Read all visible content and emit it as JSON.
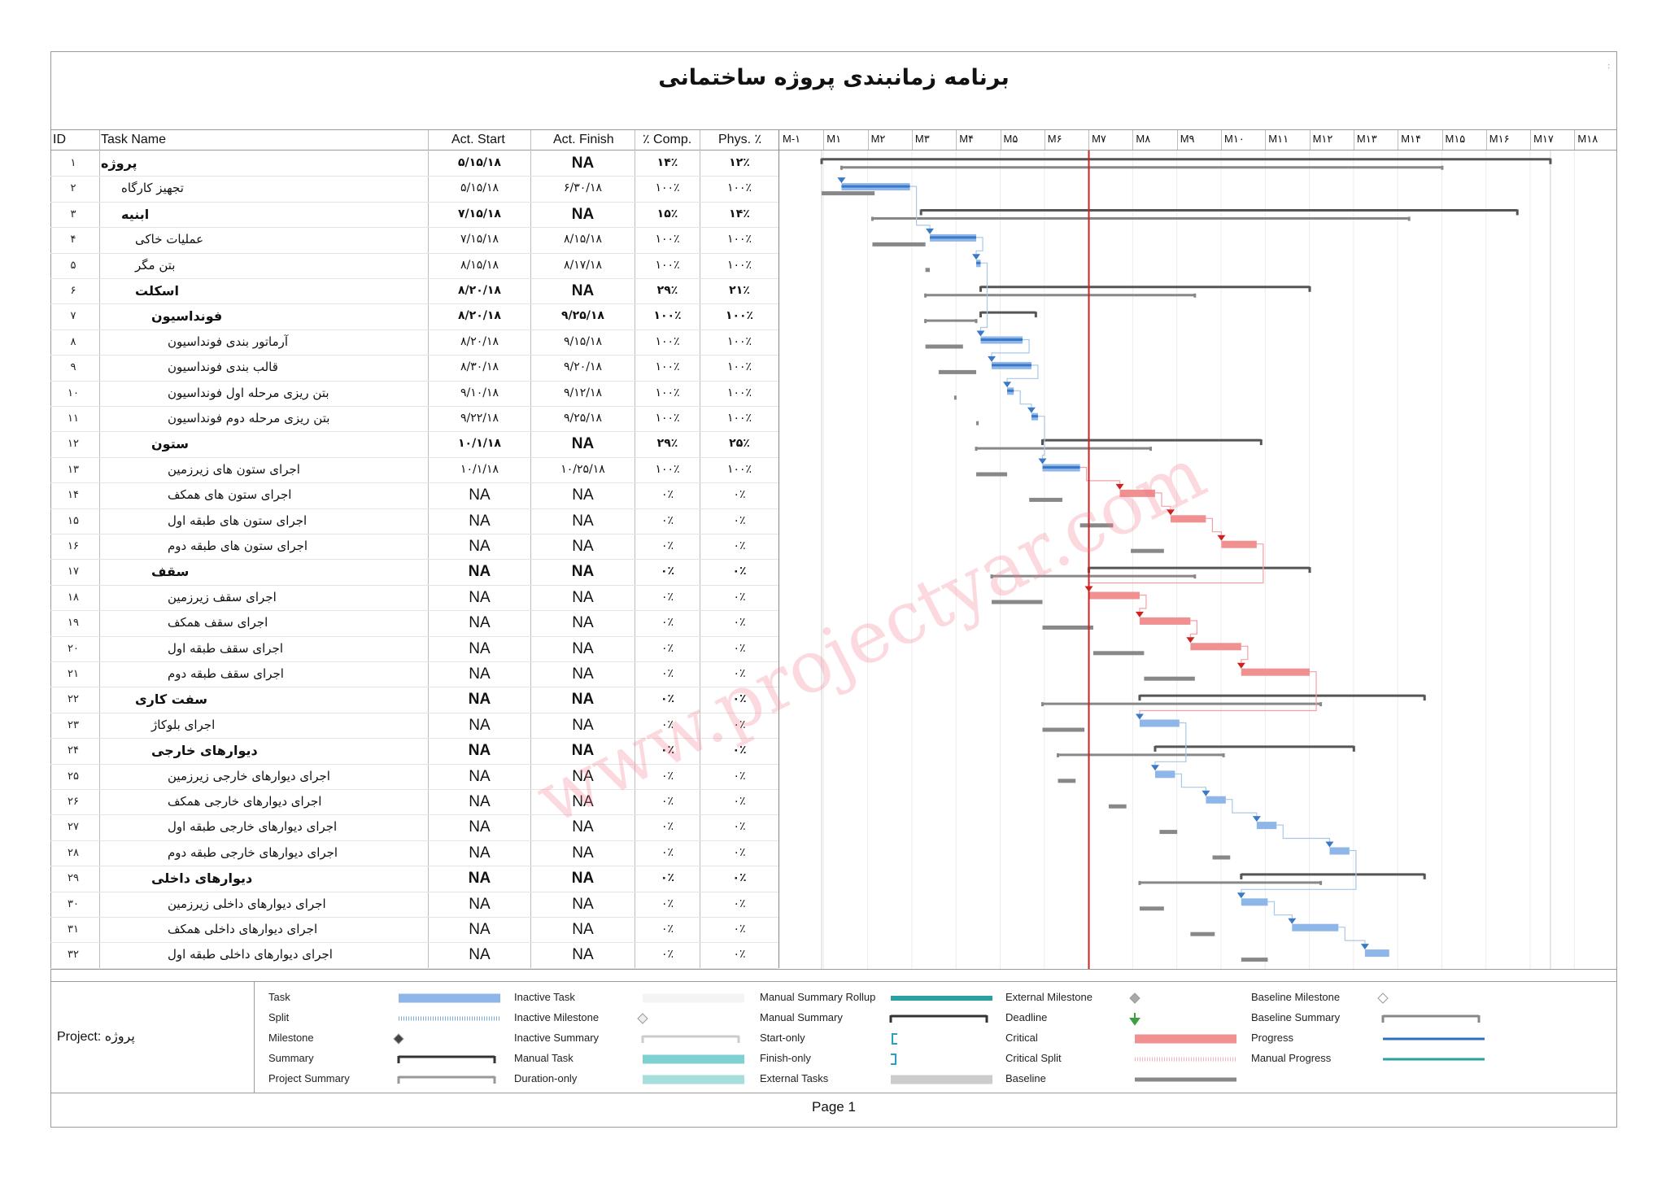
{
  "title": "برنامه زمانبندی پروژه ساختمانی",
  "corner_mark": ":",
  "columns": {
    "id": "ID",
    "task_name": "Task Name",
    "act_start": "Act. Start",
    "act_finish": "Act. Finish",
    "comp": "٪ Comp.",
    "phys": "Phys. ٪"
  },
  "months": [
    "M-۱",
    "M۱",
    "M۲",
    "M۳",
    "M۴",
    "M۵",
    "M۶",
    "M۷",
    "M۸",
    "M۹",
    "M۱۰",
    "M۱۱",
    "M۱۲",
    "M۱۳",
    "M۱۴",
    "M۱۵",
    "M۱۶",
    "M۱۷",
    "M۱۸"
  ],
  "tasks": [
    {
      "id": "۱",
      "name": "پروژه",
      "indent": 0,
      "bold": true,
      "start": "۵/۱۵/۱۸",
      "finish": "NA",
      "comp": "۱۴٪",
      "phys": "۱۲٪"
    },
    {
      "id": "۲",
      "name": "تجهیز کارگاه",
      "indent": 1,
      "bold": false,
      "start": "۵/۱۵/۱۸",
      "finish": "۶/۳۰/۱۸",
      "comp": "۱۰۰٪",
      "phys": "۱۰۰٪"
    },
    {
      "id": "۳",
      "name": "ابنیه",
      "indent": 1,
      "bold": true,
      "start": "۷/۱۵/۱۸",
      "finish": "NA",
      "comp": "۱۵٪",
      "phys": "۱۴٪"
    },
    {
      "id": "۴",
      "name": "عملیات خاکی",
      "indent": 2,
      "bold": false,
      "start": "۷/۱۵/۱۸",
      "finish": "۸/۱۵/۱۸",
      "comp": "۱۰۰٪",
      "phys": "۱۰۰٪"
    },
    {
      "id": "۵",
      "name": "بتن مگر",
      "indent": 2,
      "bold": false,
      "start": "۸/۱۵/۱۸",
      "finish": "۸/۱۷/۱۸",
      "comp": "۱۰۰٪",
      "phys": "۱۰۰٪"
    },
    {
      "id": "۶",
      "name": "اسکلت",
      "indent": 2,
      "bold": true,
      "start": "۸/۲۰/۱۸",
      "finish": "NA",
      "comp": "۲۹٪",
      "phys": "۲۱٪"
    },
    {
      "id": "۷",
      "name": "فونداسیون",
      "indent": 3,
      "bold": true,
      "start": "۸/۲۰/۱۸",
      "finish": "۹/۲۵/۱۸",
      "comp": "۱۰۰٪",
      "phys": "۱۰۰٪"
    },
    {
      "id": "۸",
      "name": "آرماتور بندی فونداسیون",
      "indent": 4,
      "bold": false,
      "start": "۸/۲۰/۱۸",
      "finish": "۹/۱۵/۱۸",
      "comp": "۱۰۰٪",
      "phys": "۱۰۰٪"
    },
    {
      "id": "۹",
      "name": "قالب بندی فونداسیون",
      "indent": 4,
      "bold": false,
      "start": "۸/۳۰/۱۸",
      "finish": "۹/۲۰/۱۸",
      "comp": "۱۰۰٪",
      "phys": "۱۰۰٪"
    },
    {
      "id": "۱۰",
      "name": "بتن ریزی مرحله اول فونداسیون",
      "indent": 4,
      "bold": false,
      "start": "۹/۱۰/۱۸",
      "finish": "۹/۱۲/۱۸",
      "comp": "۱۰۰٪",
      "phys": "۱۰۰٪"
    },
    {
      "id": "۱۱",
      "name": "بتن ریزی مرحله دوم فونداسیون",
      "indent": 4,
      "bold": false,
      "start": "۹/۲۲/۱۸",
      "finish": "۹/۲۵/۱۸",
      "comp": "۱۰۰٪",
      "phys": "۱۰۰٪"
    },
    {
      "id": "۱۲",
      "name": "ستون",
      "indent": 3,
      "bold": true,
      "start": "۱۰/۱/۱۸",
      "finish": "NA",
      "comp": "۲۹٪",
      "phys": "۲۵٪"
    },
    {
      "id": "۱۳",
      "name": "اجرای ستون های زیرزمین",
      "indent": 4,
      "bold": false,
      "start": "۱۰/۱/۱۸",
      "finish": "۱۰/۲۵/۱۸",
      "comp": "۱۰۰٪",
      "phys": "۱۰۰٪"
    },
    {
      "id": "۱۴",
      "name": "اجرای ستون های همکف",
      "indent": 4,
      "bold": false,
      "start": "NA",
      "finish": "NA",
      "comp": "۰٪",
      "phys": "۰٪"
    },
    {
      "id": "۱۵",
      "name": "اجرای ستون های طبقه اول",
      "indent": 4,
      "bold": false,
      "start": "NA",
      "finish": "NA",
      "comp": "۰٪",
      "phys": "۰٪"
    },
    {
      "id": "۱۶",
      "name": "اجرای ستون های طبقه دوم",
      "indent": 4,
      "bold": false,
      "start": "NA",
      "finish": "NA",
      "comp": "۰٪",
      "phys": "۰٪"
    },
    {
      "id": "۱۷",
      "name": "سقف",
      "indent": 3,
      "bold": true,
      "start": "NA",
      "finish": "NA",
      "comp": "۰٪",
      "phys": "۰٪"
    },
    {
      "id": "۱۸",
      "name": "اجرای سقف زیرزمین",
      "indent": 4,
      "bold": false,
      "start": "NA",
      "finish": "NA",
      "comp": "۰٪",
      "phys": "۰٪"
    },
    {
      "id": "۱۹",
      "name": "اجرای سقف همکف",
      "indent": 4,
      "bold": false,
      "start": "NA",
      "finish": "NA",
      "comp": "۰٪",
      "phys": "۰٪"
    },
    {
      "id": "۲۰",
      "name": "اجرای سقف طبقه اول",
      "indent": 4,
      "bold": false,
      "start": "NA",
      "finish": "NA",
      "comp": "۰٪",
      "phys": "۰٪"
    },
    {
      "id": "۲۱",
      "name": "اجرای سقف طبقه دوم",
      "indent": 4,
      "bold": false,
      "start": "NA",
      "finish": "NA",
      "comp": "۰٪",
      "phys": "۰٪"
    },
    {
      "id": "۲۲",
      "name": "سفت کاری",
      "indent": 2,
      "bold": true,
      "start": "NA",
      "finish": "NA",
      "comp": "۰٪",
      "phys": "۰٪"
    },
    {
      "id": "۲۳",
      "name": "اجرای بلوکاژ",
      "indent": 3,
      "bold": false,
      "start": "NA",
      "finish": "NA",
      "comp": "۰٪",
      "phys": "۰٪"
    },
    {
      "id": "۲۴",
      "name": "دیوارهای خارجی",
      "indent": 3,
      "bold": true,
      "start": "NA",
      "finish": "NA",
      "comp": "۰٪",
      "phys": "۰٪"
    },
    {
      "id": "۲۵",
      "name": "اجرای دیوارهای خارجی زیرزمین",
      "indent": 4,
      "bold": false,
      "start": "NA",
      "finish": "NA",
      "comp": "۰٪",
      "phys": "۰٪"
    },
    {
      "id": "۲۶",
      "name": "اجرای دیوارهای خارجی همکف",
      "indent": 4,
      "bold": false,
      "start": "NA",
      "finish": "NA",
      "comp": "۰٪",
      "phys": "۰٪"
    },
    {
      "id": "۲۷",
      "name": "اجرای دیوارهای خارجی طبقه اول",
      "indent": 4,
      "bold": false,
      "start": "NA",
      "finish": "NA",
      "comp": "۰٪",
      "phys": "۰٪"
    },
    {
      "id": "۲۸",
      "name": "اجرای دیوارهای خارجی طبقه دوم",
      "indent": 4,
      "bold": false,
      "start": "NA",
      "finish": "NA",
      "comp": "۰٪",
      "phys": "۰٪"
    },
    {
      "id": "۲۹",
      "name": "دیوارهای داخلی",
      "indent": 3,
      "bold": true,
      "start": "NA",
      "finish": "NA",
      "comp": "۰٪",
      "phys": "۰٪"
    },
    {
      "id": "۳۰",
      "name": "اجرای دیوارهای داخلی زیرزمین",
      "indent": 4,
      "bold": false,
      "start": "NA",
      "finish": "NA",
      "comp": "۰٪",
      "phys": "۰٪"
    },
    {
      "id": "۳۱",
      "name": "اجرای دیوارهای داخلی همکف",
      "indent": 4,
      "bold": false,
      "start": "NA",
      "finish": "NA",
      "comp": "۰٪",
      "phys": "۰٪"
    },
    {
      "id": "۳۲",
      "name": "اجرای دیوارهای داخلی طبقه اول",
      "indent": 4,
      "bold": false,
      "start": "NA",
      "finish": "NA",
      "comp": "۰٪",
      "phys": "۰٪"
    }
  ],
  "gantt_bars": [
    {
      "row": 0,
      "kind": "summary",
      "start": 0.0,
      "end": 16.5,
      "baseline": [
        0.45,
        14.05
      ]
    },
    {
      "row": 1,
      "kind": "task",
      "start": 0.45,
      "end": 2.0,
      "baseline": [
        0.0,
        1.2
      ]
    },
    {
      "row": 2,
      "kind": "summary",
      "start": 2.25,
      "end": 15.75,
      "baseline": [
        1.15,
        13.3
      ]
    },
    {
      "row": 3,
      "kind": "task",
      "start": 2.45,
      "end": 3.5,
      "baseline": [
        1.15,
        2.35
      ]
    },
    {
      "row": 4,
      "kind": "milestone-task",
      "start": 3.5,
      "end": 3.6,
      "baseline": [
        2.35,
        2.45
      ]
    },
    {
      "row": 5,
      "kind": "summary",
      "start": 3.6,
      "end": 11.05,
      "baseline": [
        2.35,
        8.45
      ]
    },
    {
      "row": 6,
      "kind": "summary",
      "start": 3.6,
      "end": 4.85,
      "baseline": [
        2.35,
        3.5
      ]
    },
    {
      "row": 7,
      "kind": "task",
      "start": 3.6,
      "end": 4.55,
      "baseline": [
        2.35,
        3.2
      ]
    },
    {
      "row": 8,
      "kind": "task",
      "start": 3.85,
      "end": 4.75,
      "baseline": [
        2.65,
        3.5
      ]
    },
    {
      "row": 9,
      "kind": "task",
      "start": 4.2,
      "end": 4.35,
      "baseline": [
        3.0,
        3.05
      ]
    },
    {
      "row": 10,
      "kind": "task",
      "start": 4.75,
      "end": 4.9,
      "baseline": [
        3.5,
        3.55
      ]
    },
    {
      "row": 11,
      "kind": "summary",
      "start": 5.0,
      "end": 9.95,
      "baseline": [
        3.5,
        7.45
      ]
    },
    {
      "row": 12,
      "kind": "task",
      "start": 5.0,
      "end": 5.85,
      "baseline": [
        3.5,
        4.2
      ]
    },
    {
      "row": 13,
      "kind": "critical",
      "start": 6.75,
      "end": 7.55,
      "baseline": [
        4.7,
        5.45
      ]
    },
    {
      "row": 14,
      "kind": "critical",
      "start": 7.9,
      "end": 8.7,
      "baseline": [
        5.85,
        6.6
      ]
    },
    {
      "row": 15,
      "kind": "critical",
      "start": 9.05,
      "end": 9.85,
      "baseline": [
        7.0,
        7.75
      ]
    },
    {
      "row": 16,
      "kind": "summary",
      "start": 6.05,
      "end": 11.05,
      "baseline": [
        3.85,
        8.45
      ]
    },
    {
      "row": 17,
      "kind": "critical",
      "start": 6.05,
      "end": 7.2,
      "baseline": [
        3.85,
        5.0
      ]
    },
    {
      "row": 18,
      "kind": "critical",
      "start": 7.2,
      "end": 8.35,
      "baseline": [
        5.0,
        6.15
      ]
    },
    {
      "row": 19,
      "kind": "critical",
      "start": 8.35,
      "end": 9.5,
      "baseline": [
        6.15,
        7.3
      ]
    },
    {
      "row": 20,
      "kind": "critical",
      "start": 9.5,
      "end": 11.05,
      "baseline": [
        7.3,
        8.45
      ]
    },
    {
      "row": 21,
      "kind": "summary",
      "start": 7.2,
      "end": 13.65,
      "baseline": [
        5.0,
        11.3
      ]
    },
    {
      "row": 22,
      "kind": "task",
      "start": 7.2,
      "end": 8.1,
      "baseline": [
        5.0,
        5.95
      ]
    },
    {
      "row": 23,
      "kind": "summary",
      "start": 7.55,
      "end": 12.05,
      "baseline": [
        5.35,
        9.1
      ]
    },
    {
      "row": 24,
      "kind": "task",
      "start": 7.55,
      "end": 8.0,
      "baseline": [
        5.35,
        5.75
      ]
    },
    {
      "row": 25,
      "kind": "task",
      "start": 8.7,
      "end": 9.15,
      "baseline": [
        6.5,
        6.9
      ]
    },
    {
      "row": 26,
      "kind": "task",
      "start": 9.85,
      "end": 10.3,
      "baseline": [
        7.65,
        8.05
      ]
    },
    {
      "row": 27,
      "kind": "task",
      "start": 11.5,
      "end": 11.95,
      "baseline": [
        8.85,
        9.25
      ]
    },
    {
      "row": 28,
      "kind": "summary",
      "start": 9.5,
      "end": 13.65,
      "baseline": [
        7.2,
        11.3
      ]
    },
    {
      "row": 29,
      "kind": "task",
      "start": 9.5,
      "end": 10.1,
      "baseline": [
        7.2,
        7.75
      ]
    },
    {
      "row": 30,
      "kind": "task",
      "start": 10.65,
      "end": 11.7,
      "baseline": [
        8.35,
        8.9
      ]
    },
    {
      "row": 31,
      "kind": "task",
      "start": 12.3,
      "end": 12.85,
      "baseline": [
        9.5,
        10.1
      ]
    }
  ],
  "status_date_month": 6.05,
  "colors": {
    "task": "#8fb6e8",
    "progress": "#3a78c8",
    "critical": "#f09090",
    "summary": "#555555",
    "baseline": "#888888",
    "status_line": "#cc2222",
    "manual_task": "#7fd0d0",
    "manual_summary_rollup": "#2aa0a0"
  },
  "legend": {
    "project_prefix": "Project:",
    "project_name": "پروژه",
    "items": [
      [
        "Task",
        "Split",
        "Milestone",
        "Summary",
        "Project Summary"
      ],
      [
        "Inactive Task",
        "Inactive Milestone",
        "Inactive Summary",
        "Manual Task",
        "Duration-only"
      ],
      [
        "Manual Summary Rollup",
        "Manual Summary",
        "Start-only",
        "Finish-only",
        "External Tasks"
      ],
      [
        "External Milestone",
        "Deadline",
        "Critical",
        "Critical Split",
        "Baseline"
      ],
      [
        "Baseline Milestone",
        "Baseline Summary",
        "Progress",
        "Manual Progress",
        ""
      ]
    ]
  },
  "watermark": "www.projectyar.com",
  "footer": "Page 1"
}
